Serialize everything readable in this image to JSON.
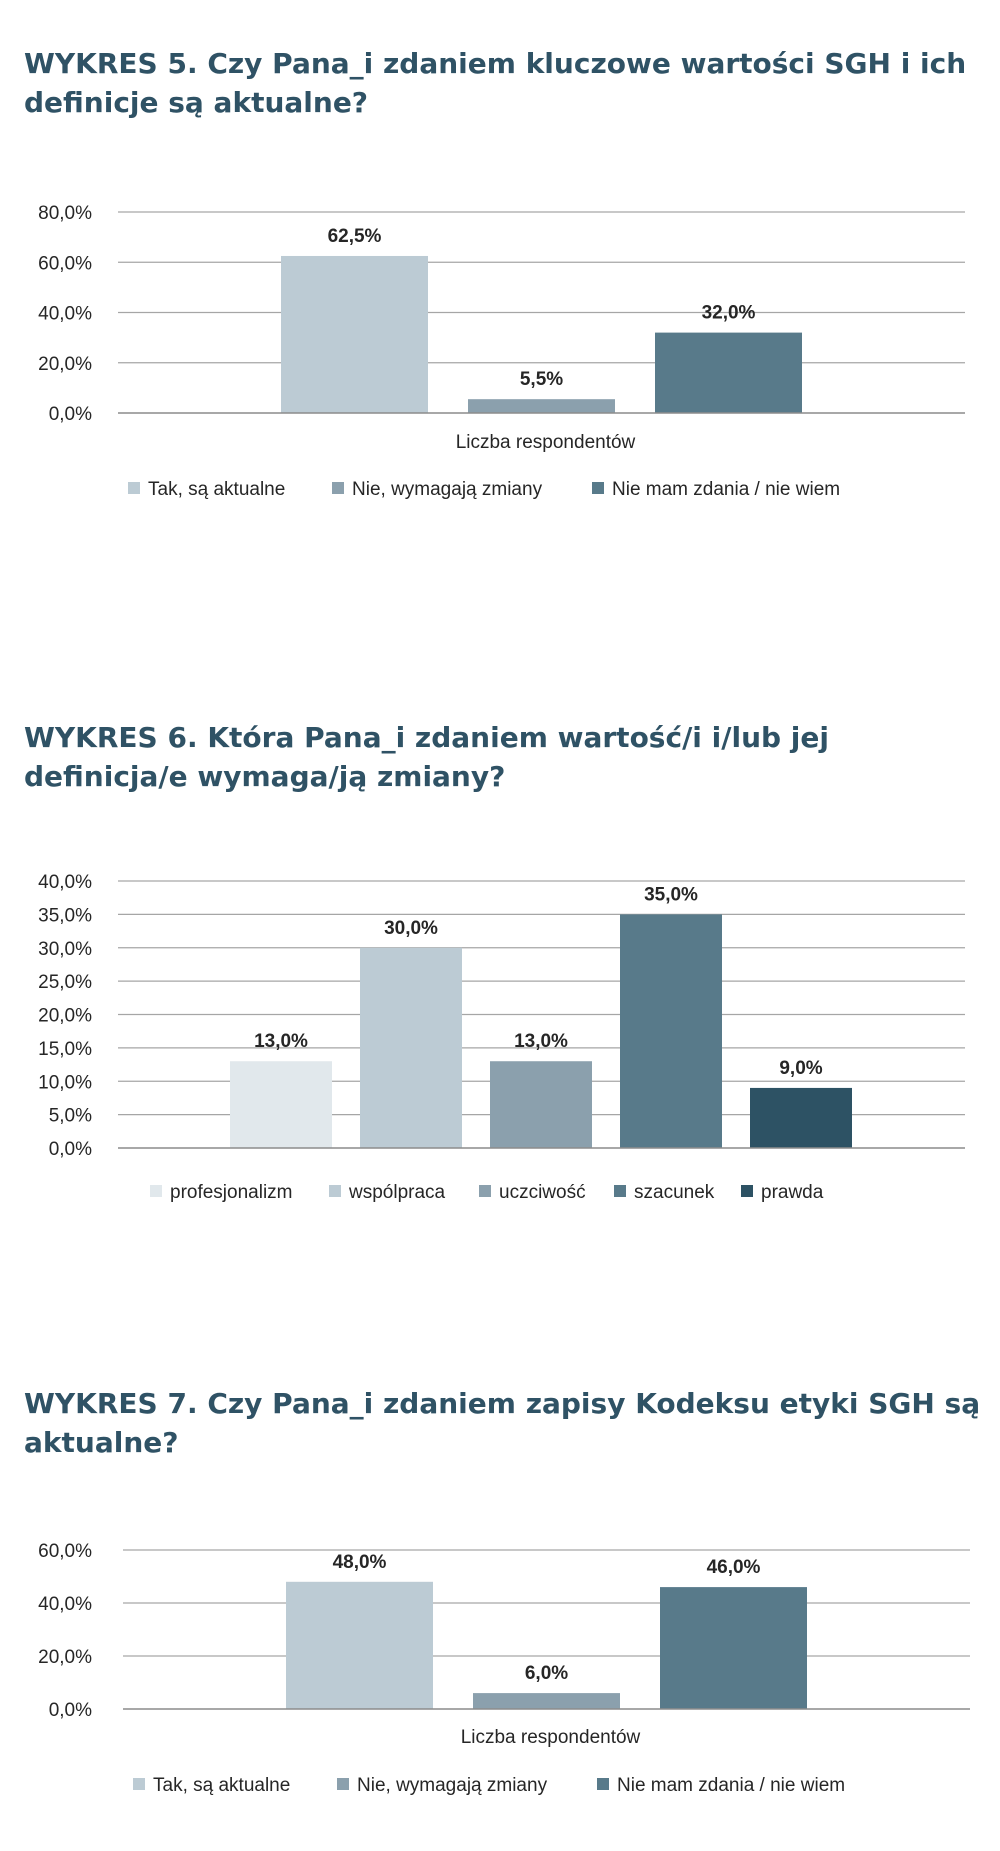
{
  "charts": [
    {
      "title": "WYKRES 5. Czy Pana_i zdaniem kluczowe wartości SGH i ich definicje są aktualne?",
      "chart_data": {
        "type": "bar",
        "categories": [
          "Liczba respondentów"
        ],
        "series": [
          {
            "name": "Tak, są aktualne",
            "values": [
              62.5
            ],
            "color": "#bccbd4"
          },
          {
            "name": "Nie, wymagają zmiany",
            "values": [
              5.5
            ],
            "color": "#8ba0ad"
          },
          {
            "name": "Nie mam zdania / nie wiem",
            "values": [
              32.0
            ],
            "color": "#587a8a"
          }
        ],
        "xlabel": "Liczba respondentów",
        "ylim": [
          0,
          80
        ],
        "yticks": [
          0,
          20,
          40,
          60,
          80
        ],
        "ytick_labels": [
          "0,0%",
          "20,0%",
          "40,0%",
          "60,0%",
          "80,0%"
        ],
        "data_labels": [
          "62,5%",
          "5,5%",
          "32,0%"
        ],
        "grid": true,
        "legend": "bottom"
      }
    },
    {
      "title": "WYKRES 6. Która Pana_i zdaniem wartość/i i/lub jej definicja/e wymaga/ją zmiany?",
      "chart_data": {
        "type": "bar",
        "categories": [
          ""
        ],
        "series": [
          {
            "name": "profesjonalizm",
            "values": [
              13.0
            ],
            "color": "#e1e8ec"
          },
          {
            "name": "wspólpraca",
            "values": [
              30.0
            ],
            "color": "#bccbd4"
          },
          {
            "name": "uczciwość",
            "values": [
              13.0
            ],
            "color": "#8ba0ad"
          },
          {
            "name": "szacunek",
            "values": [
              35.0
            ],
            "color": "#587a8a"
          },
          {
            "name": "prawda",
            "values": [
              9.0
            ],
            "color": "#2d5264"
          }
        ],
        "xlabel": "",
        "ylim": [
          0,
          40
        ],
        "yticks": [
          0,
          5,
          10,
          15,
          20,
          25,
          30,
          35,
          40
        ],
        "ytick_labels": [
          "0,0%",
          "5,0%",
          "10,0%",
          "15,0%",
          "20,0%",
          "25,0%",
          "30,0%",
          "35,0%",
          "40,0%"
        ],
        "data_labels": [
          "13,0%",
          "30,0%",
          "13,0%",
          "35,0%",
          "9,0%"
        ],
        "grid": true,
        "legend": "bottom"
      }
    },
    {
      "title": "WYKRES 7. Czy Pana_i zdaniem zapisy Kodeksu etyki SGH są aktualne?",
      "chart_data": {
        "type": "bar",
        "categories": [
          "Liczba respondentów"
        ],
        "series": [
          {
            "name": "Tak, są aktualne",
            "values": [
              48.0
            ],
            "color": "#bccbd4"
          },
          {
            "name": "Nie, wymagają zmiany",
            "values": [
              6.0
            ],
            "color": "#8ba0ad"
          },
          {
            "name": "Nie mam zdania / nie wiem",
            "values": [
              46.0
            ],
            "color": "#587a8a"
          }
        ],
        "xlabel": "Liczba respondentów",
        "ylim": [
          0,
          60
        ],
        "yticks": [
          0,
          20,
          40,
          60
        ],
        "ytick_labels": [
          "0,0%",
          "20,0%",
          "40,0%",
          "60,0%"
        ],
        "data_labels": [
          "48,0%",
          "6,0%",
          "46,0%"
        ],
        "grid": true,
        "legend": "bottom"
      }
    }
  ]
}
